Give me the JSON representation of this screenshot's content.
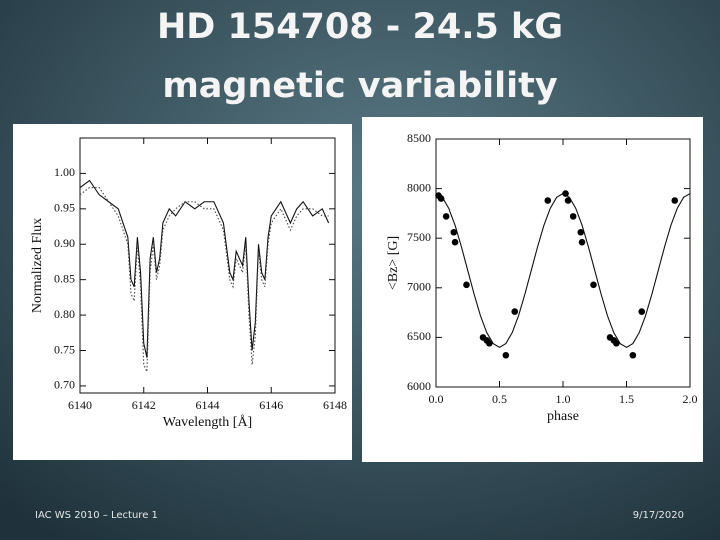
{
  "slide": {
    "title": [
      "HD 154708 - 24.5 kG",
      "magnetic variability"
    ],
    "footer_left": "IAC WS 2010 – Lecture 1",
    "footer_right": "9/17/2020"
  },
  "chart_data": [
    {
      "type": "line",
      "xlabel": "Wavelength [Å]",
      "ylabel": "Normalized Flux",
      "xlim": [
        6140,
        6148
      ],
      "xticks": [
        6140,
        6142,
        6144,
        6146,
        6148
      ],
      "ylim": [
        0.69,
        1.05
      ],
      "yticks": [
        {
          "value": 0.7,
          "label": "0.70"
        },
        0.75,
        {
          "value": 0.8,
          "label": "0.80"
        },
        0.85,
        {
          "value": 0.9,
          "label": "0.90"
        },
        0.95,
        {
          "value": 1.0,
          "label": "1.00"
        }
      ],
      "x": [
        6140.0,
        6140.3,
        6140.6,
        6140.9,
        6141.2,
        6141.5,
        6141.6,
        6141.7,
        6141.8,
        6141.9,
        6142.0,
        6142.1,
        6142.2,
        6142.3,
        6142.4,
        6142.5,
        6142.6,
        6142.8,
        6143.0,
        6143.3,
        6143.6,
        6143.9,
        6144.2,
        6144.5,
        6144.7,
        6144.8,
        6144.9,
        6145.0,
        6145.1,
        6145.2,
        6145.3,
        6145.4,
        6145.5,
        6145.6,
        6145.7,
        6145.8,
        6145.9,
        6146.0,
        6146.3,
        6146.6,
        6146.8,
        6147.0,
        6147.3,
        6147.6,
        6147.8
      ],
      "series": [
        {
          "color": "#111111",
          "dash": false,
          "values": [
            0.98,
            0.99,
            0.97,
            0.96,
            0.95,
            0.91,
            0.85,
            0.84,
            0.91,
            0.86,
            0.76,
            0.74,
            0.88,
            0.91,
            0.86,
            0.88,
            0.93,
            0.95,
            0.94,
            0.96,
            0.95,
            0.96,
            0.96,
            0.93,
            0.86,
            0.85,
            0.89,
            0.88,
            0.87,
            0.91,
            0.82,
            0.75,
            0.79,
            0.9,
            0.86,
            0.85,
            0.91,
            0.94,
            0.96,
            0.93,
            0.95,
            0.96,
            0.94,
            0.95,
            0.93
          ]
        },
        {
          "color": "#444444",
          "dash": true,
          "values": [
            0.97,
            0.98,
            0.98,
            0.96,
            0.94,
            0.9,
            0.83,
            0.82,
            0.9,
            0.84,
            0.73,
            0.72,
            0.86,
            0.9,
            0.85,
            0.87,
            0.92,
            0.94,
            0.95,
            0.96,
            0.96,
            0.95,
            0.95,
            0.92,
            0.85,
            0.84,
            0.88,
            0.87,
            0.86,
            0.9,
            0.8,
            0.73,
            0.77,
            0.89,
            0.85,
            0.84,
            0.9,
            0.93,
            0.95,
            0.92,
            0.94,
            0.95,
            0.95,
            0.94,
            0.94
          ]
        }
      ]
    },
    {
      "type": "scatter",
      "xlabel": "phase",
      "ylabel": "<Bz> [G]",
      "xlim": [
        0,
        2
      ],
      "xticks": [
        {
          "value": 0,
          "label": "0.0"
        },
        0.5,
        {
          "value": 1,
          "label": "1.0"
        },
        1.5,
        {
          "value": 2,
          "label": "2.0"
        }
      ],
      "ylim": [
        6000,
        8500
      ],
      "yticks": [
        6000,
        6500,
        7000,
        7500,
        8000,
        8500
      ],
      "series": [
        {
          "style": "line",
          "color": "#111111",
          "x": [
            0,
            0.05,
            0.1,
            0.15,
            0.2,
            0.25,
            0.3,
            0.35,
            0.4,
            0.45,
            0.5,
            0.55,
            0.6,
            0.65,
            0.7,
            0.75,
            0.8,
            0.85,
            0.9,
            0.95,
            1.0,
            1.05,
            1.1,
            1.15,
            1.2,
            1.25,
            1.3,
            1.35,
            1.4,
            1.45,
            1.5,
            1.55,
            1.6,
            1.65,
            1.7,
            1.75,
            1.8,
            1.85,
            1.9,
            1.95,
            2.0
          ],
          "values": [
            7950,
            7912,
            7802,
            7631,
            7414,
            7175,
            6936,
            6719,
            6548,
            6438,
            6400,
            6438,
            6548,
            6719,
            6936,
            7175,
            7414,
            7631,
            7802,
            7912,
            7950,
            7912,
            7802,
            7631,
            7414,
            7175,
            6936,
            6719,
            6548,
            6438,
            6400,
            6438,
            6548,
            6719,
            6936,
            7175,
            7414,
            7631,
            7802,
            7912,
            7950
          ]
        },
        {
          "style": "markers",
          "color": "#000000",
          "x": [
            0.02,
            0.04,
            0.08,
            0.14,
            0.15,
            0.24,
            0.37,
            0.4,
            0.42,
            0.55,
            0.62,
            0.88,
            1.02,
            1.04,
            1.08,
            1.14,
            1.15,
            1.24,
            1.37,
            1.4,
            1.42,
            1.55,
            1.62,
            1.88
          ],
          "values": [
            7930,
            7900,
            7720,
            7560,
            7460,
            7030,
            6500,
            6470,
            6440,
            6320,
            6760,
            7880,
            7950,
            7880,
            7720,
            7560,
            7460,
            7030,
            6500,
            6470,
            6440,
            6320,
            6760,
            7880
          ]
        }
      ]
    }
  ]
}
